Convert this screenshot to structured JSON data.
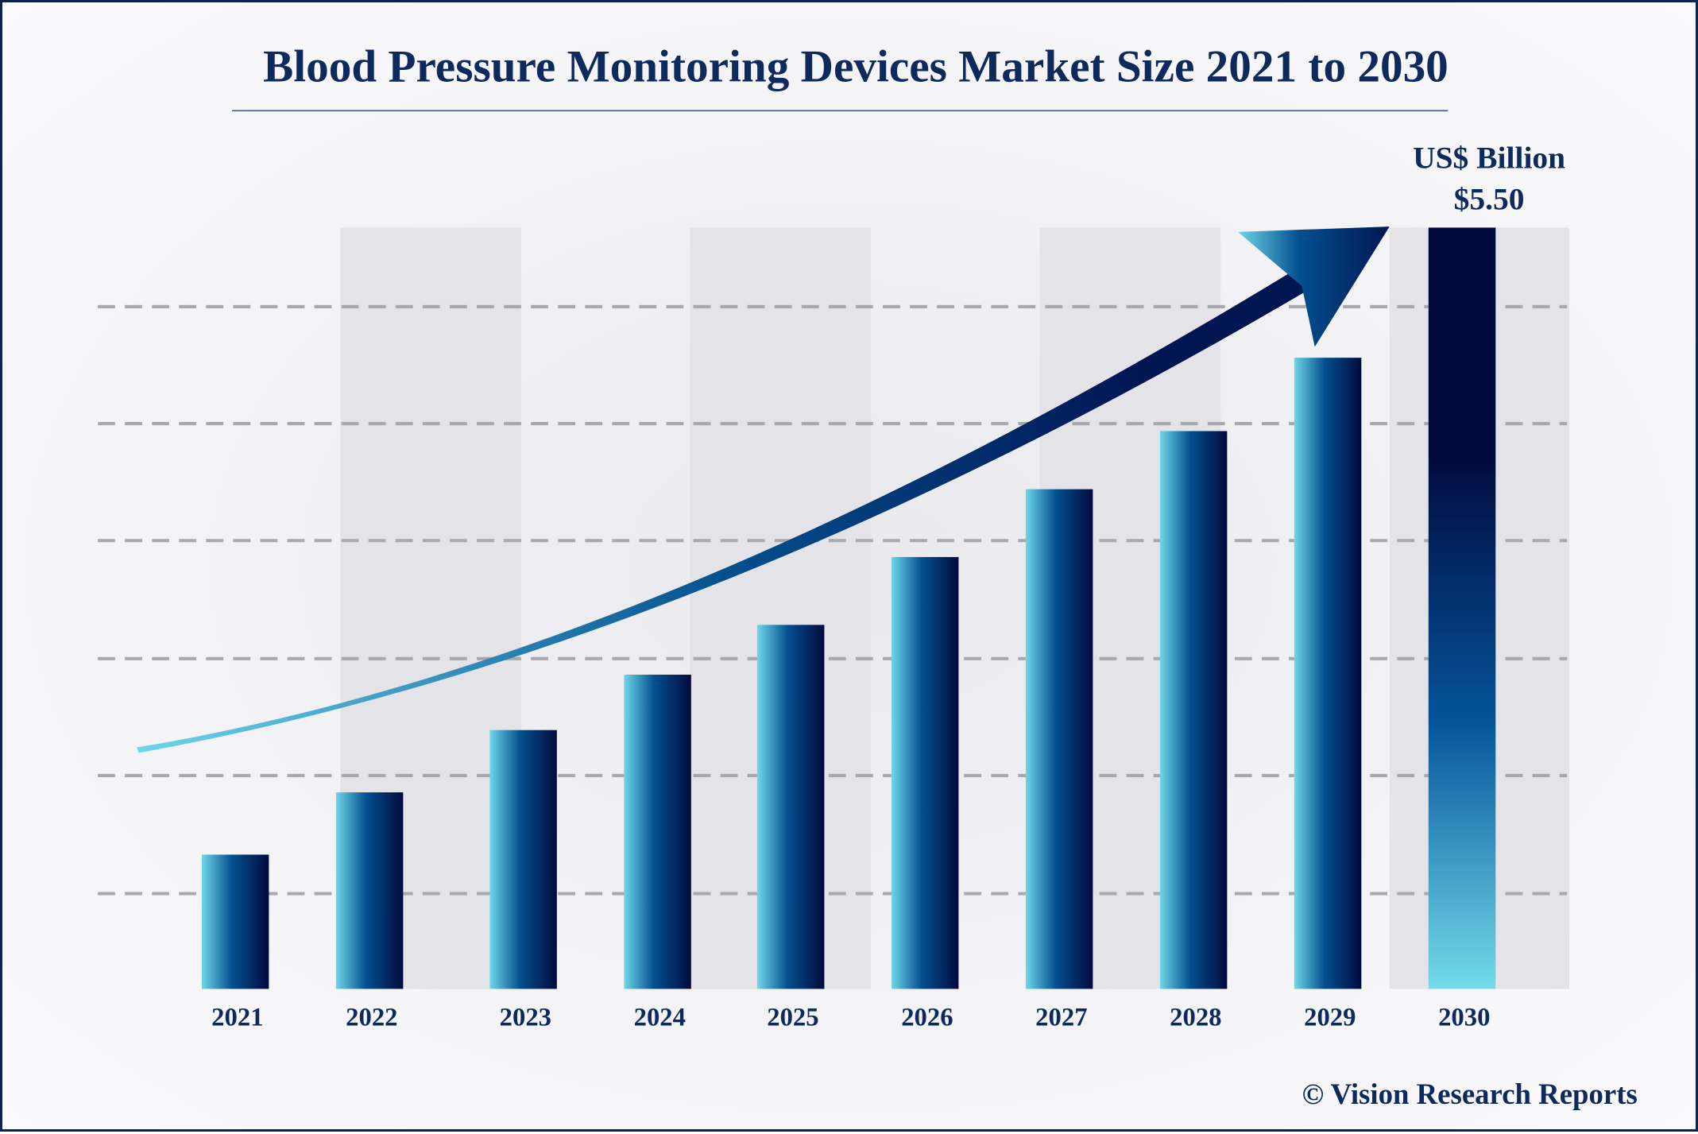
{
  "chart_data": {
    "type": "bar",
    "title": "Blood Pressure Monitoring Devices Market Size 2021 to 2030",
    "unit_label": "US$ Billion",
    "highlight_label": "$5.50",
    "categories": [
      "2021",
      "2022",
      "2023",
      "2024",
      "2025",
      "2026",
      "2027",
      "2028",
      "2029",
      "2030"
    ],
    "values": [
      0.97,
      1.42,
      1.87,
      2.27,
      2.63,
      3.12,
      3.61,
      4.03,
      4.56,
      5.5
    ],
    "ylim": [
      0,
      5.5
    ],
    "grid": "horizontal dashed",
    "trend_arrow": true,
    "colors": {
      "bar_light": "#6fd6ea",
      "bar_mid": "#03508f",
      "bar_dark": "#010a3e",
      "title": "#0e2a5c",
      "band": "#e3e3e8",
      "grid": "#a9a9ab"
    }
  },
  "footer": {
    "copyright": "© Vision Research Reports"
  }
}
